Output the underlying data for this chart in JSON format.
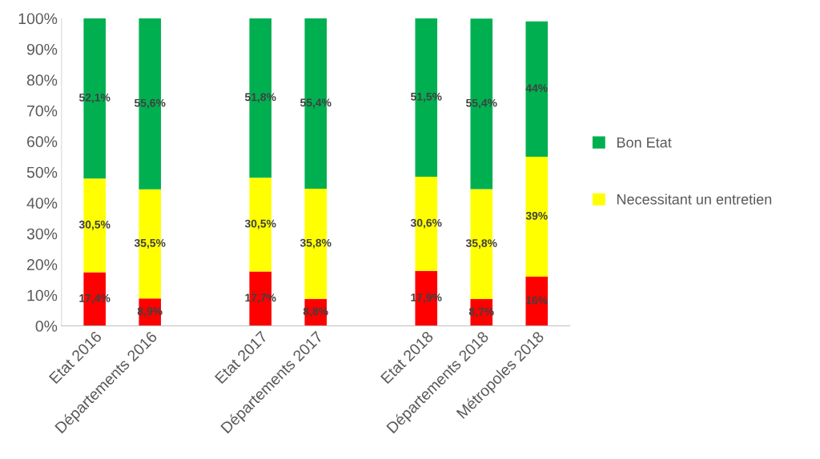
{
  "chart_data": {
    "type": "bar",
    "stacked": true,
    "categories": [
      "Etat 2016",
      "Départements 2016",
      null,
      "Etat 2017",
      "Départements 2017",
      null,
      "Etat 2018",
      "Départements 2018",
      "Métropoles 2018"
    ],
    "series": [
      {
        "color": "#ff0000",
        "values": [
          17.4,
          8.9,
          null,
          17.7,
          8.8,
          null,
          17.9,
          8.7,
          16
        ],
        "value_labels": [
          "17,4%",
          "8,9%",
          null,
          "17,7%",
          "8,8%",
          null,
          "17,9%",
          "8,7%",
          "16%"
        ]
      },
      {
        "name": "Necessitant un entretien",
        "color": "#ffff00",
        "values": [
          30.5,
          35.5,
          null,
          30.5,
          35.8,
          null,
          30.6,
          35.8,
          39
        ],
        "value_labels": [
          "30,5%",
          "35,5%",
          null,
          "30,5%",
          "35,8%",
          null,
          "30,6%",
          "35,8%",
          "39%"
        ]
      },
      {
        "name": "Bon Etat",
        "color": "#00b050",
        "values": [
          52.1,
          55.6,
          null,
          51.8,
          55.4,
          null,
          51.5,
          55.4,
          44
        ],
        "value_labels": [
          "52,1%",
          "55,6%",
          null,
          "51,8%",
          "55,4%",
          null,
          "51,5%",
          "55,4%",
          "44%"
        ]
      }
    ],
    "ylim": [
      0,
      100
    ],
    "yticks": [
      {
        "value": 0,
        "label": "0%"
      },
      {
        "value": 10,
        "label": "10%"
      },
      {
        "value": 20,
        "label": "20%"
      },
      {
        "value": 30,
        "label": "30%"
      },
      {
        "value": 40,
        "label": "40%"
      },
      {
        "value": 50,
        "label": "50%"
      },
      {
        "value": 60,
        "label": "60%"
      },
      {
        "value": 70,
        "label": "70%"
      },
      {
        "value": 80,
        "label": "80%"
      },
      {
        "value": 90,
        "label": "90%"
      },
      {
        "value": 100,
        "label": "100%"
      }
    ],
    "grid": false,
    "legend": "right"
  }
}
